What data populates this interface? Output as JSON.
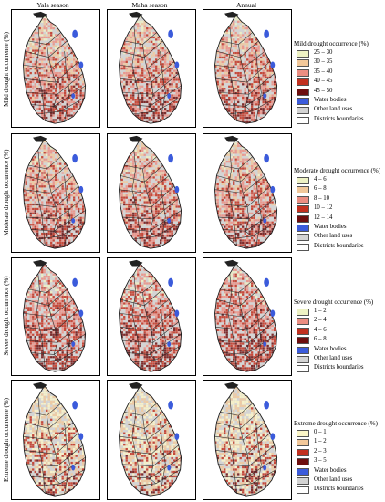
{
  "columns": [
    "Yala season",
    "Maha season",
    "Annual"
  ],
  "rows": [
    {
      "label": "Mild drought occurrence (%)",
      "legend_title": "Mild drought occurrence (%)",
      "classes": [
        {
          "label": "25 – 30",
          "color": "#eef2c4"
        },
        {
          "label": "30 – 35",
          "color": "#f2c89a"
        },
        {
          "label": "35 – 40",
          "color": "#ec8e82"
        },
        {
          "label": "40 – 45",
          "color": "#c2301f"
        },
        {
          "label": "45 – 50",
          "color": "#6d0e0e"
        }
      ]
    },
    {
      "label": "Moderate drought occurrence (%)",
      "legend_title": "Moderate drought occurrence (%)",
      "classes": [
        {
          "label": "4 – 6",
          "color": "#eef2c4"
        },
        {
          "label": "6 – 8",
          "color": "#f2c89a"
        },
        {
          "label": "8 – 10",
          "color": "#ec8e82"
        },
        {
          "label": "10 – 12",
          "color": "#c2301f"
        },
        {
          "label": "12 – 14",
          "color": "#6d0e0e"
        }
      ]
    },
    {
      "label": "Severe drought occurrence (%)",
      "legend_title": "Severe drought occurrence (%)",
      "classes": [
        {
          "label": "1 – 2",
          "color": "#eef2c4"
        },
        {
          "label": "2 – 4",
          "color": "#ec8e82"
        },
        {
          "label": "4 – 6",
          "color": "#c2301f"
        },
        {
          "label": "6 – 8",
          "color": "#6d0e0e"
        }
      ]
    },
    {
      "label": "Extreme drought occurrence (%)",
      "legend_title": "Extreme drought occurrence (%)",
      "classes": [
        {
          "label": "0 – 1",
          "color": "#fbf6c8"
        },
        {
          "label": "1 – 2",
          "color": "#f2c89a"
        },
        {
          "label": "2 – 3",
          "color": "#c2301f"
        },
        {
          "label": "3 – 5",
          "color": "#6d0e0e"
        }
      ]
    }
  ],
  "common_legend": [
    {
      "label": "Water bodies",
      "color": "#3b5bdb"
    },
    {
      "label": "Other land uses",
      "color": "#d4d4d4"
    },
    {
      "label": "Districts boundaries",
      "color": "#ffffff"
    }
  ]
}
